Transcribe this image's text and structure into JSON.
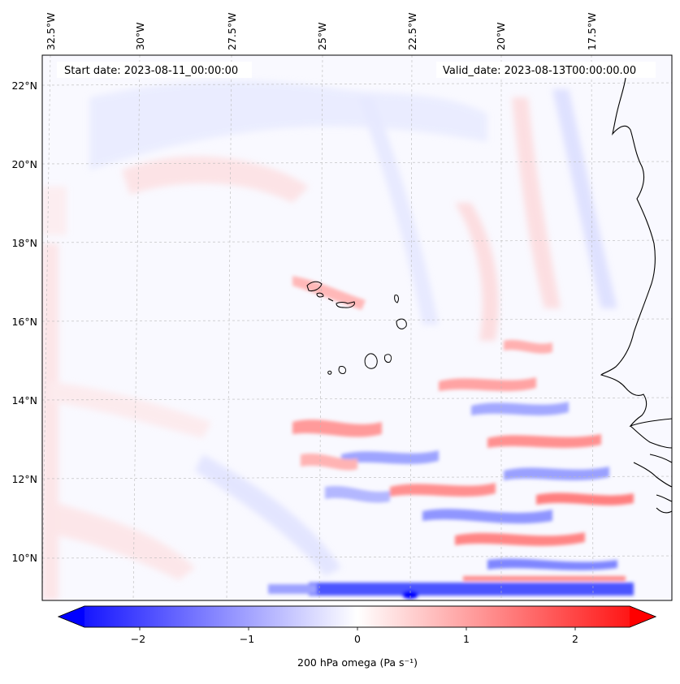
{
  "map": {
    "start_date": "Start date: 2023-08-11_00:00:00",
    "valid_date": "Valid_date: 2023-08-13T00:00:00.00",
    "lon_labels": [
      {
        "text": "32.5°W",
        "lon": -32.5
      },
      {
        "text": "30°W",
        "lon": -30.0
      },
      {
        "text": "27.5°W",
        "lon": -27.5
      },
      {
        "text": "25°W",
        "lon": -25.0
      },
      {
        "text": "22.5°W",
        "lon": -22.5
      },
      {
        "text": "20°W",
        "lon": -20.0
      },
      {
        "text": "17.5°W",
        "lon": -17.5
      }
    ],
    "lat_labels": [
      {
        "text": "22°N",
        "lat": 22
      },
      {
        "text": "20°N",
        "lat": 20
      },
      {
        "text": "18°N",
        "lat": 18
      },
      {
        "text": "16°N",
        "lat": 16
      },
      {
        "text": "14°N",
        "lat": 14
      },
      {
        "text": "12°N",
        "lat": 12
      },
      {
        "text": "10°N",
        "lat": 10
      }
    ],
    "extent": {
      "lon_min": -32.6,
      "lon_max": -15.6,
      "lat_min": 8.9,
      "lat_max": 22.8
    },
    "colormap": "bwr",
    "gridlines": "dashed"
  },
  "colorbar": {
    "label": "200 hPa omega (Pa s⁻¹)",
    "ticks": [
      {
        "text": "−2",
        "value": -2
      },
      {
        "text": "−1",
        "value": -1
      },
      {
        "text": "0",
        "value": 0
      },
      {
        "text": "1",
        "value": 1
      },
      {
        "text": "2",
        "value": 2
      }
    ],
    "vmin": -2.5,
    "vmax": 2.5,
    "extend": "both",
    "colors": {
      "low": "#0000ff",
      "mid": "#ffffff",
      "high": "#ff0000"
    }
  }
}
